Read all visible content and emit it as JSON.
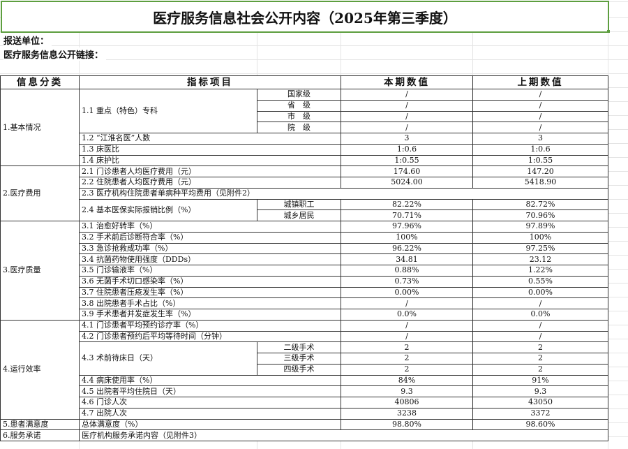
{
  "title": "医疗服务信息社会公开内容（2025年第三季度）",
  "reporting_unit_label": "报送单位：",
  "link_label": "医疗服务信息公开链接：",
  "colors": {
    "selection_border": "#5d9e3f",
    "border": "#333333",
    "gridline": "#e4e4e4"
  },
  "headers": {
    "category": "信息分类",
    "indicator": "指标项目",
    "current": "本期数值",
    "previous": "上期数值"
  },
  "sections": [
    {
      "category": "1.基本情况",
      "items": [
        {
          "label": "1.1 重点（特色）专科",
          "subs": [
            {
              "label": "国家级",
              "current": "/",
              "previous": "/"
            },
            {
              "label": "省　级",
              "current": "/",
              "previous": "/"
            },
            {
              "label": "市　级",
              "current": "/",
              "previous": "/"
            },
            {
              "label": "院　级",
              "current": "/",
              "previous": "/"
            }
          ]
        },
        {
          "label": "1.2 “江淮名医”人数",
          "current": "3",
          "previous": "3"
        },
        {
          "label": "1.3 床医比",
          "current": "1:0.6",
          "previous": "1:0.6"
        },
        {
          "label": "1.4 床护比",
          "current": "1:0.55",
          "previous": "1:0.55"
        }
      ]
    },
    {
      "category": "2.医疗费用",
      "items": [
        {
          "label": "2.1 门诊患者人均医疗费用（元）",
          "current": "174.60",
          "previous": "147.20"
        },
        {
          "label": "2.2 住院患者人均医疗费用（元）",
          "current": "5024.00",
          "previous": "5418.90"
        },
        {
          "label": "2.3 医疗机构住院患者单病种平均费用（见附件2）",
          "merged": true
        },
        {
          "label": "2.4 基本医保实际报销比例（%）",
          "subs": [
            {
              "label": "城镇职工",
              "current": "82.22%",
              "previous": "82.72%"
            },
            {
              "label": "城乡居民",
              "current": "70.71%",
              "previous": "70.96%"
            }
          ]
        }
      ]
    },
    {
      "category": "3.医疗质量",
      "items": [
        {
          "label": "3.1 治愈好转率（%）",
          "current": "97.96%",
          "previous": "97.89%"
        },
        {
          "label": "3.2 手术前后诊断符合率（%）",
          "current": "100%",
          "previous": "100%"
        },
        {
          "label": "3.3 急诊抢救成功率（%）",
          "current": "96.22%",
          "previous": "97.25%"
        },
        {
          "label": "3.4 抗菌药物使用强度（DDDs）",
          "current": "34.81",
          "previous": "23.12"
        },
        {
          "label": "3.5 门诊输液率（%）",
          "current": "0.88%",
          "previous": "1.22%"
        },
        {
          "label": "3.6 无菌手术切口感染率（%）",
          "current": "0.73%",
          "previous": "0.55%"
        },
        {
          "label": "3.7 住院患者压疮发生率（%）",
          "current": "0.00%",
          "previous": "0.00%"
        },
        {
          "label": "3.8 出院患者手术占比（%）",
          "current": "/",
          "previous": "/"
        },
        {
          "label": "3.9 手术患者并发症发生率（%）",
          "current": "0.0%",
          "previous": "0.0%"
        }
      ]
    },
    {
      "category": "4.运行效率",
      "items": [
        {
          "label": "4.1 门诊患者平均预约诊疗率（%）",
          "current": "/",
          "previous": "/"
        },
        {
          "label": "4.2 门诊患者预约后平均等待时间（分钟）",
          "current": "/",
          "previous": "/"
        },
        {
          "label": "4.3 术前待床日（天）",
          "subs": [
            {
              "label": "二级手术",
              "current": "2",
              "previous": "2"
            },
            {
              "label": "三级手术",
              "current": "2",
              "previous": "2"
            },
            {
              "label": "四级手术",
              "current": "2",
              "previous": "2"
            }
          ]
        },
        {
          "label": "4.4 病床使用率（%）",
          "current": "84%",
          "previous": "91%"
        },
        {
          "label": "4.5 出院者平均住院日（天）",
          "current": "9.3",
          "previous": "9.3"
        },
        {
          "label": "4.6 门诊人次",
          "current": "40806",
          "previous": "43050"
        },
        {
          "label": "4.7 出院人次",
          "current": "3238",
          "previous": "3372"
        }
      ]
    },
    {
      "category": "5.患者满意度",
      "items": [
        {
          "label": "总体满意度（%）",
          "current": "98.80%",
          "previous": "98.60%"
        }
      ]
    },
    {
      "category": "6.服务承诺",
      "items": [
        {
          "label": "医疗机构服务承诺内容（见附件3）",
          "merged": true
        }
      ]
    }
  ]
}
